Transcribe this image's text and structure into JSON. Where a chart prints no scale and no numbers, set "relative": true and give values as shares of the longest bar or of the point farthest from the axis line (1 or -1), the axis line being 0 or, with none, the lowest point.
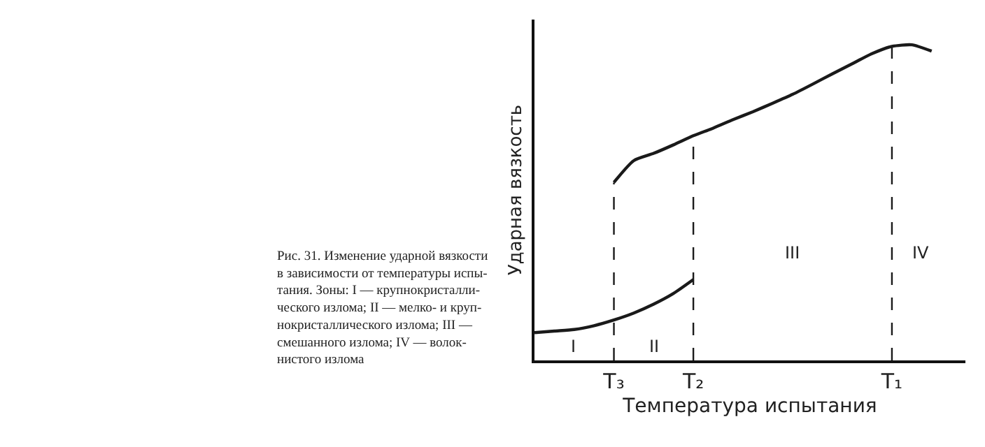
{
  "chart_data": {
    "type": "line",
    "relative": true,
    "xlabel": "Температура испытания",
    "ylabel": "Ударная вязкость",
    "categories": [
      null,
      null,
      null,
      null,
      "T₃",
      null,
      null,
      null,
      "T₂",
      null,
      null,
      null,
      null,
      null,
      null,
      null,
      null,
      null,
      "T₁",
      null,
      null,
      null
    ],
    "marker": "none",
    "series": [
      {
        "color": "#1a1a1a",
        "line_style": "solid",
        "values": [
          0.088,
          0.093,
          0.098,
          0.11,
          0.128,
          0.15,
          0.178,
          0.212,
          0.256,
          null,
          null,
          null,
          null,
          null,
          null,
          null,
          null,
          null,
          null,
          null,
          null,
          null
        ]
      },
      {
        "color": "#1a1a1a",
        "line_style": "solid",
        "values": [
          null,
          null,
          null,
          null,
          0.564,
          0.633,
          0.656,
          0.683,
          0.712,
          0.736,
          0.763,
          0.788,
          0.815,
          0.843,
          0.875,
          0.908,
          0.94,
          0.972,
          0.995,
          1.0,
          0.98,
          null
        ]
      }
    ],
    "ref_lines": [
      {
        "axis": "x",
        "value": "T₃",
        "color": "#1a1a1a",
        "line_style": "dashed"
      },
      {
        "axis": "x",
        "value": "T₂",
        "color": "#1a1a1a",
        "line_style": "dashed"
      },
      {
        "axis": "x",
        "value": "T₁",
        "color": "#1a1a1a",
        "line_style": "dashed"
      }
    ],
    "annotations": [
      "I",
      "II",
      "III",
      "IV",
      "Рис. 31. Изменение ударной вязкости\nв зависимости от температуры испы-\nтания. Зоны: I — крупнокристалли-\nческого излома; II — мелко- и круп-\nнокристаллического излома; III —\nсмешанного излома; IV — волок-\nнистого излома"
    ]
  }
}
